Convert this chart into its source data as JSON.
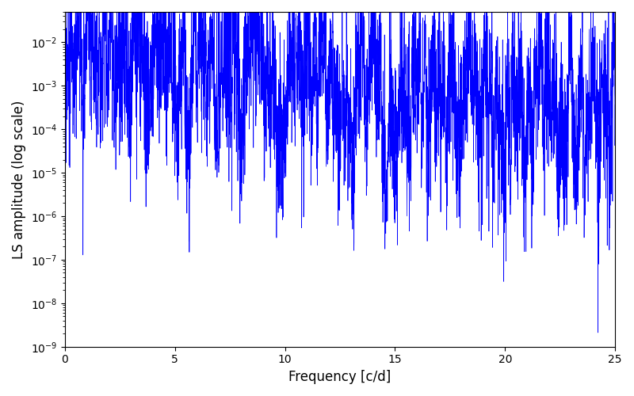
{
  "title": "",
  "xlabel": "Frequency [c/d]",
  "ylabel": "LS amplitude (log scale)",
  "line_color": "blue",
  "xlim": [
    0,
    25
  ],
  "ylim": [
    1e-09,
    0.05
  ],
  "freq_max": 25.0,
  "n_points": 5000,
  "seed": 42,
  "background_color": "#ffffff",
  "figsize": [
    8.0,
    5.0
  ],
  "dpi": 100
}
